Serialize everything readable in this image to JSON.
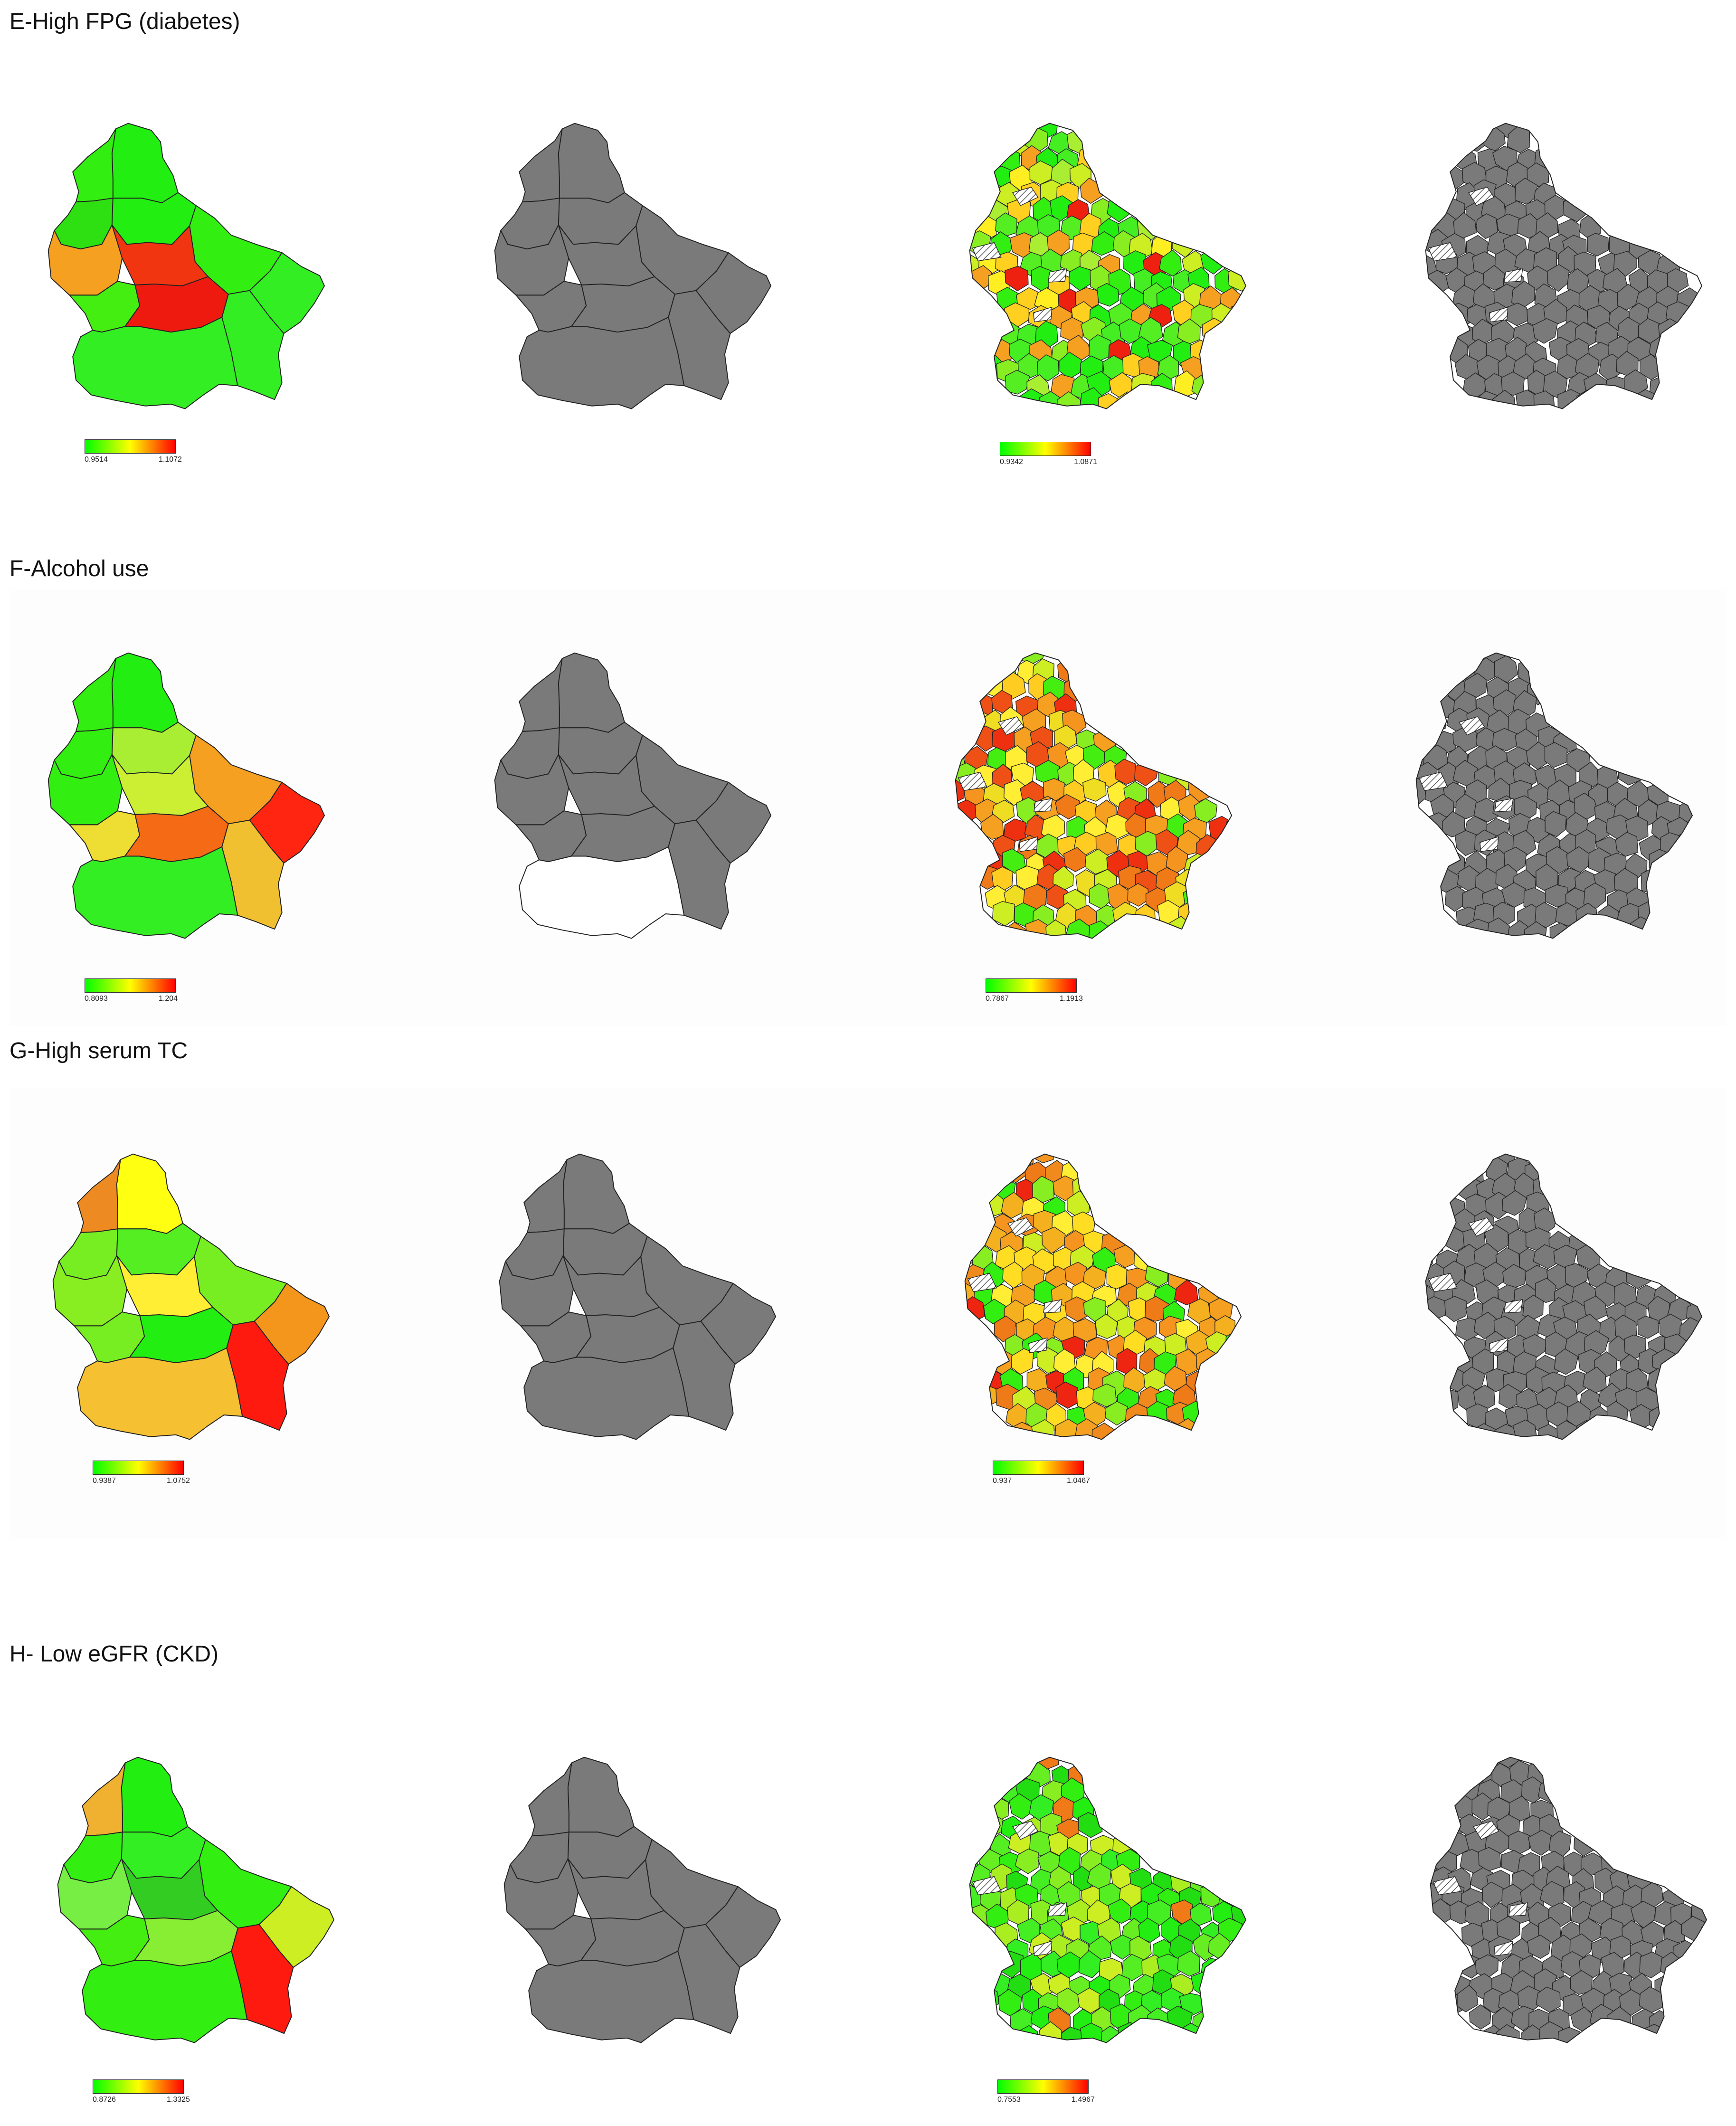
{
  "colors": {
    "scale_low": "#00ff00",
    "scale_mid": "#ffff00",
    "scale_high": "#ff0000",
    "nonsignificant": "#7a7a7a",
    "missing": "#ffffff"
  },
  "panels": [
    {
      "title": "E-High FPG (diabetes)",
      "canton_legend": {
        "min": "0.9514",
        "max": "1.1072"
      },
      "commune_legend": {
        "min": "0.9342",
        "max": "1.0871"
      }
    },
    {
      "title": "F-Alcohol use",
      "canton_legend": {
        "min": "0.8093",
        "max": "1.204"
      },
      "commune_legend": {
        "min": "0.7867",
        "max": "1.1913"
      }
    },
    {
      "title": "G-High serum TC",
      "canton_legend": {
        "min": "0.9387",
        "max": "1.0752"
      },
      "commune_legend": {
        "min": "0.937",
        "max": "1.0467"
      }
    },
    {
      "title": "H- Low eGFR (CKD)",
      "canton_legend": {
        "min": "0.8726",
        "max": "1.3325"
      },
      "commune_legend": {
        "min": "0.7553",
        "max": "1.4967"
      }
    }
  ]
}
